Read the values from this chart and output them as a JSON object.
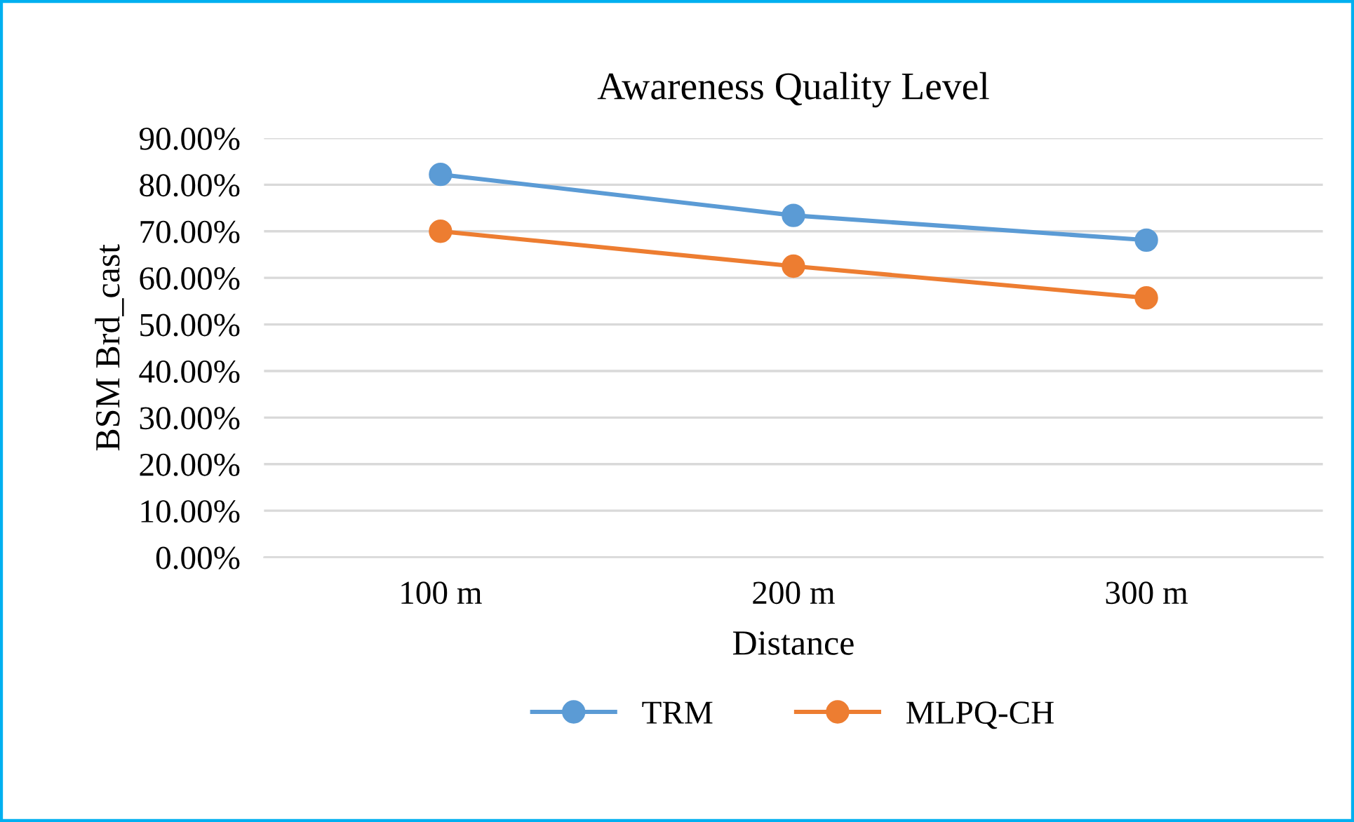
{
  "chart_data": {
    "type": "line",
    "title": "Awareness Quality Level",
    "xlabel": "Distance",
    "ylabel": "BSM Brd_cast",
    "categories": [
      "100 m",
      "200 m",
      "300 m"
    ],
    "series": [
      {
        "name": "TRM",
        "color": "#5b9bd5",
        "values": [
          82.2,
          73.4,
          68.1
        ]
      },
      {
        "name": "MLPQ-CH",
        "color": "#ed7d31",
        "values": [
          70.0,
          62.5,
          55.7
        ]
      }
    ],
    "ylim": [
      0,
      90
    ],
    "yticks": [
      {
        "value": 0,
        "label": "0.00%"
      },
      {
        "value": 10,
        "label": "10.00%"
      },
      {
        "value": 20,
        "label": "20.00%"
      },
      {
        "value": 30,
        "label": "30.00%"
      },
      {
        "value": 40,
        "label": "40.00%"
      },
      {
        "value": 50,
        "label": "50.00%"
      },
      {
        "value": 60,
        "label": "60.00%"
      },
      {
        "value": 70,
        "label": "70.00%"
      },
      {
        "value": 80,
        "label": "80.00%"
      },
      {
        "value": 90,
        "label": "90.00%"
      }
    ],
    "grid": "y",
    "legend": "bottom",
    "marker": "circle",
    "line_style": "solid"
  }
}
